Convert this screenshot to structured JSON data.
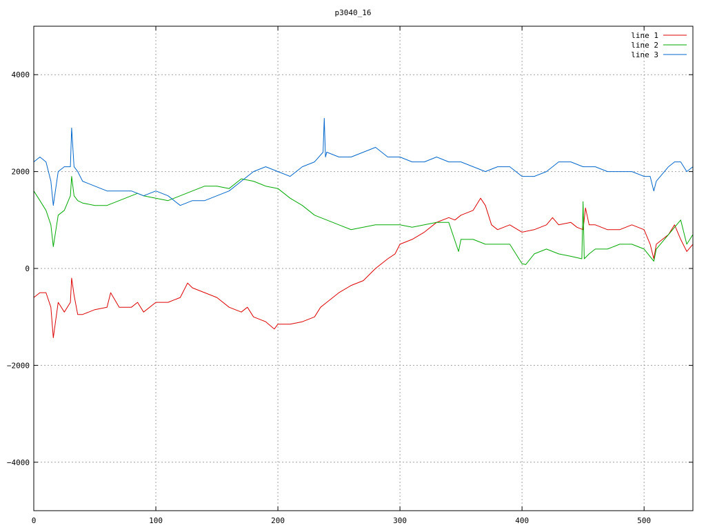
{
  "chart_data": {
    "type": "line",
    "title": "p3040_16",
    "xlabel": "",
    "ylabel": "",
    "xlim": [
      0,
      540
    ],
    "ylim": [
      -5000,
      5000
    ],
    "x_ticks": [
      0,
      100,
      200,
      300,
      400,
      500
    ],
    "y_ticks": [
      -4000,
      -2000,
      0,
      2000,
      4000
    ],
    "x_tick_labels": [
      "0",
      "100",
      "200",
      "300",
      "400",
      "500"
    ],
    "y_tick_labels": [
      "−4000",
      "−2000",
      "0",
      "2000",
      "4000"
    ],
    "grid": true,
    "legend_position": "top-right",
    "series": [
      {
        "name": "line 1",
        "color": "#dd0000",
        "x": [
          0,
          5,
          10,
          14,
          16,
          20,
          25,
          30,
          31,
          33,
          36,
          40,
          50,
          60,
          63,
          70,
          80,
          85,
          90,
          100,
          110,
          120,
          126,
          130,
          140,
          150,
          160,
          170,
          175,
          180,
          190,
          197,
          200,
          210,
          220,
          230,
          235,
          240,
          250,
          260,
          270,
          280,
          290,
          296,
          300,
          310,
          320,
          330,
          340,
          345,
          350,
          360,
          366,
          370,
          375,
          380,
          390,
          400,
          410,
          420,
          425,
          430,
          440,
          445,
          450,
          452,
          455,
          460,
          470,
          480,
          490,
          500,
          505,
          508,
          510,
          520,
          525,
          530,
          535,
          540
        ],
        "values": [
          -600,
          -500,
          -500,
          -800,
          -1430,
          -700,
          -900,
          -700,
          -200,
          -550,
          -950,
          -950,
          -850,
          -800,
          -500,
          -800,
          -800,
          -700,
          -900,
          -700,
          -700,
          -600,
          -300,
          -400,
          -500,
          -600,
          -800,
          -900,
          -800,
          -1000,
          -1100,
          -1250,
          -1150,
          -1150,
          -1100,
          -1000,
          -800,
          -700,
          -500,
          -350,
          -250,
          0,
          200,
          300,
          500,
          600,
          750,
          950,
          1050,
          1000,
          1100,
          1200,
          1450,
          1300,
          900,
          800,
          900,
          750,
          800,
          900,
          1050,
          900,
          950,
          850,
          800,
          1250,
          900,
          900,
          800,
          800,
          900,
          800,
          500,
          200,
          500,
          700,
          900,
          600,
          350,
          500
        ]
      },
      {
        "name": "line 2",
        "color": "#00aa00",
        "x": [
          0,
          5,
          10,
          14,
          16,
          20,
          25,
          30,
          31,
          33,
          36,
          40,
          50,
          60,
          70,
          80,
          85,
          90,
          100,
          110,
          120,
          130,
          140,
          150,
          160,
          170,
          180,
          190,
          200,
          210,
          220,
          230,
          240,
          250,
          260,
          270,
          280,
          290,
          300,
          310,
          320,
          330,
          340,
          348,
          350,
          360,
          370,
          380,
          390,
          400,
          403,
          410,
          420,
          430,
          440,
          449,
          450,
          451,
          455,
          460,
          470,
          480,
          490,
          500,
          508,
          510,
          520,
          530,
          535,
          540
        ],
        "values": [
          1600,
          1400,
          1200,
          900,
          450,
          1100,
          1200,
          1500,
          1900,
          1500,
          1400,
          1350,
          1300,
          1300,
          1400,
          1500,
          1550,
          1500,
          1450,
          1400,
          1500,
          1600,
          1700,
          1700,
          1650,
          1850,
          1800,
          1700,
          1650,
          1450,
          1300,
          1100,
          1000,
          900,
          800,
          850,
          900,
          900,
          900,
          850,
          900,
          950,
          950,
          350,
          600,
          600,
          500,
          500,
          500,
          100,
          80,
          300,
          400,
          300,
          250,
          200,
          1380,
          200,
          300,
          400,
          400,
          500,
          500,
          400,
          150,
          400,
          700,
          1000,
          500,
          700
        ]
      },
      {
        "name": "line 3",
        "color": "#0066cc",
        "x": [
          0,
          5,
          10,
          14,
          16,
          20,
          25,
          30,
          31,
          33,
          36,
          40,
          50,
          60,
          70,
          80,
          90,
          100,
          110,
          120,
          130,
          140,
          150,
          160,
          170,
          180,
          190,
          200,
          210,
          220,
          230,
          237,
          238,
          239,
          240,
          250,
          260,
          270,
          280,
          290,
          300,
          310,
          320,
          330,
          340,
          350,
          360,
          370,
          380,
          390,
          400,
          410,
          420,
          430,
          440,
          450,
          460,
          470,
          480,
          490,
          500,
          505,
          508,
          510,
          520,
          525,
          530,
          535,
          540
        ],
        "values": [
          2200,
          2300,
          2200,
          1800,
          1300,
          2000,
          2100,
          2100,
          2900,
          2100,
          2000,
          1800,
          1700,
          1600,
          1600,
          1600,
          1500,
          1600,
          1500,
          1300,
          1400,
          1400,
          1500,
          1600,
          1800,
          2000,
          2100,
          2000,
          1900,
          2100,
          2200,
          2400,
          3100,
          2300,
          2400,
          2300,
          2300,
          2400,
          2500,
          2300,
          2300,
          2200,
          2200,
          2300,
          2200,
          2200,
          2100,
          2000,
          2100,
          2100,
          1900,
          1900,
          2000,
          2200,
          2200,
          2100,
          2100,
          2000,
          2000,
          2000,
          1900,
          1900,
          1600,
          1800,
          2100,
          2200,
          2200,
          2000,
          2100
        ]
      }
    ]
  }
}
